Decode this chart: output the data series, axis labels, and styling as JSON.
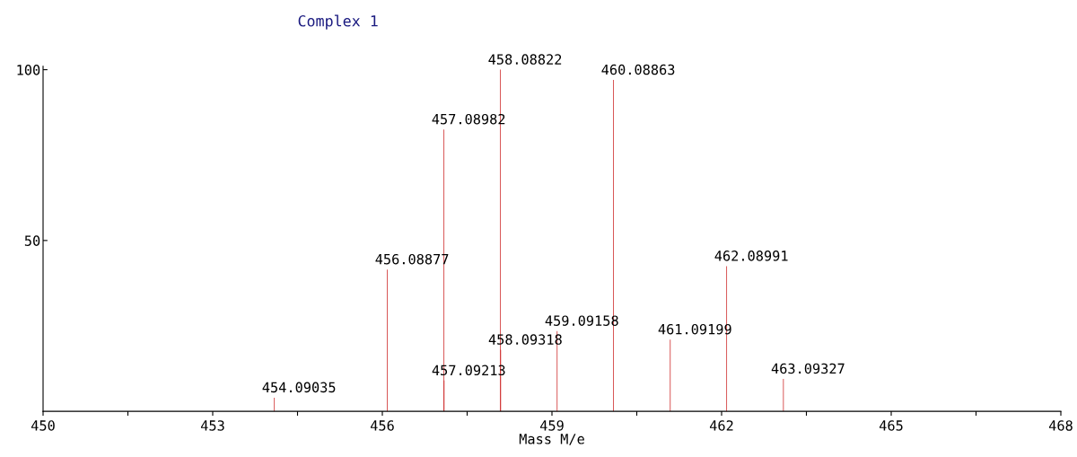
{
  "chart_data": {
    "type": "bar",
    "title": "Complex 1",
    "xlabel": "Mass M/e",
    "x": [
      454.09035,
      456.08877,
      457.08982,
      457.09213,
      458.08822,
      458.09318,
      459.09158,
      460.08863,
      461.09199,
      462.08991,
      463.09327
    ],
    "values": [
      4,
      41.5,
      82.5,
      9,
      100,
      18,
      23.5,
      97,
      21,
      42.5,
      9.5
    ],
    "color": "#cc2222",
    "xlim": [
      450,
      468
    ],
    "xticks": [
      450,
      {
        "value": 451.5,
        "label": null
      },
      453,
      {
        "value": 454.5,
        "label": null
      },
      456,
      {
        "value": 457.5,
        "label": null
      },
      459,
      {
        "value": 460.5,
        "label": null
      },
      462,
      {
        "value": 463.5,
        "label": null
      },
      465,
      {
        "value": 466.5,
        "label": null
      },
      468
    ],
    "ylim": [
      0,
      101
    ],
    "yticks": [
      50,
      100
    ],
    "grid": false,
    "annotations": [
      {
        "text": "454.09035",
        "x": 454.09035,
        "y": 4
      },
      {
        "text": "456.08877",
        "x": 456.08877,
        "y": 41.5
      },
      {
        "text": "457.08982",
        "x": 457.08982,
        "y": 82.5
      },
      {
        "text": "457.09213",
        "x": 457.09213,
        "y": 9
      },
      {
        "text": "458.08822",
        "x": 458.08822,
        "y": 100
      },
      {
        "text": "458.09318",
        "x": 458.09318,
        "y": 18
      },
      {
        "text": "459.09158",
        "x": 459.09158,
        "y": 23.5
      },
      {
        "text": "460.08863",
        "x": 460.08863,
        "y": 97
      },
      {
        "text": "461.09199",
        "x": 461.09199,
        "y": 21
      },
      {
        "text": "462.08991",
        "x": 462.08991,
        "y": 42.5
      },
      {
        "text": "463.09327",
        "x": 463.09327,
        "y": 9.5
      }
    ]
  }
}
